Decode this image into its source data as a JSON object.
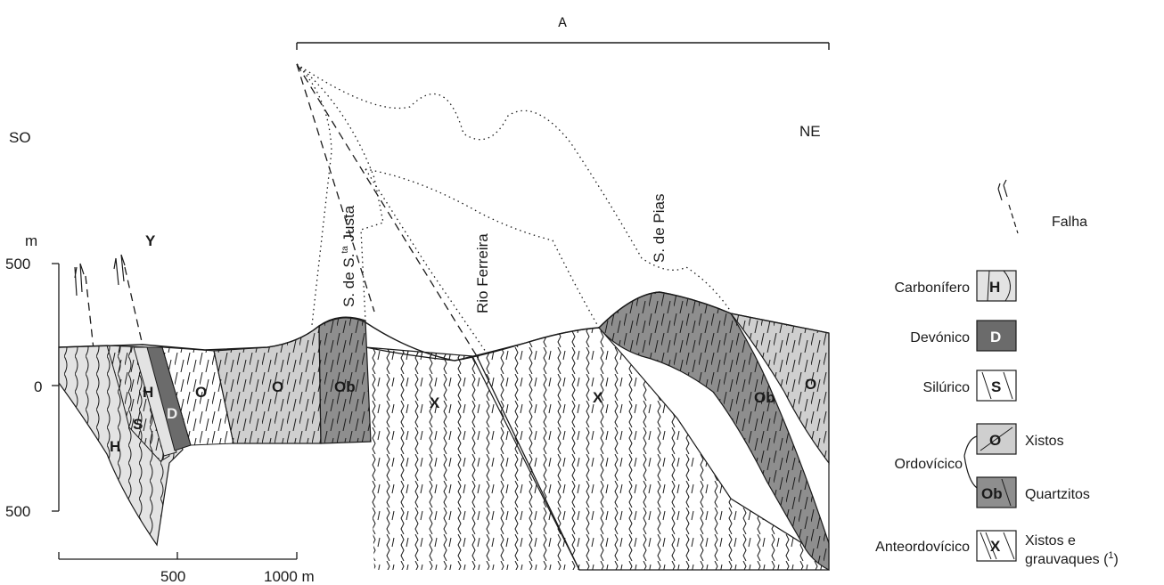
{
  "header": {
    "section_label": "A"
  },
  "orientation": {
    "left": "SO",
    "right": "NE"
  },
  "scales": {
    "vertical_unit": "m",
    "vertical_ticks": [
      "500",
      "0",
      "500"
    ],
    "horizontal_ticks": [
      "500",
      "1000 m"
    ]
  },
  "topography": {
    "peak_1": "S. de S.",
    "peak_1_sup": "ta",
    "peak_1_end": " Justa",
    "river": "Rio Ferreira",
    "peak_2": "S. de Pias"
  },
  "units_on_section": {
    "H_left": "H",
    "H_mid": "H",
    "S": "S",
    "D": "D",
    "O_1": "O",
    "O_2": "O",
    "Ob_1": "Ob",
    "X_1": "X",
    "X_2": "X",
    "Ob_2": "Ob",
    "O_3": "O",
    "Y": "Y"
  },
  "legend": {
    "falha": "Falha",
    "items": [
      {
        "age": "Carbonífero",
        "symbol": "H",
        "fill": "#e3e3e3"
      },
      {
        "age": "Devónico",
        "symbol": "D",
        "fill": "#6b6b6b"
      },
      {
        "age": "Silúrico",
        "symbol": "S",
        "fill": "#ffffff"
      },
      {
        "symbol": "O",
        "desc": "Xistos",
        "fill": "#cfcfcf"
      },
      {
        "symbol": "Ob",
        "desc": "Quartzitos",
        "fill": "#8e8e8e"
      },
      {
        "age": "Anteordovícico",
        "symbol": "X",
        "desc": "Xistos e",
        "desc2": "grauvaques (",
        "desc2_sup": "1",
        "desc2_end": ")",
        "fill": "#ffffff"
      }
    ],
    "ordovicico": "Ordovícico"
  },
  "colors": {
    "carbonifero": "#e3e3e3",
    "devonico": "#6b6b6b",
    "ordovicico_xistos": "#cfcfcf",
    "ordovicico_quartzitos": "#8e8e8e",
    "line": "#1a1a1a"
  }
}
